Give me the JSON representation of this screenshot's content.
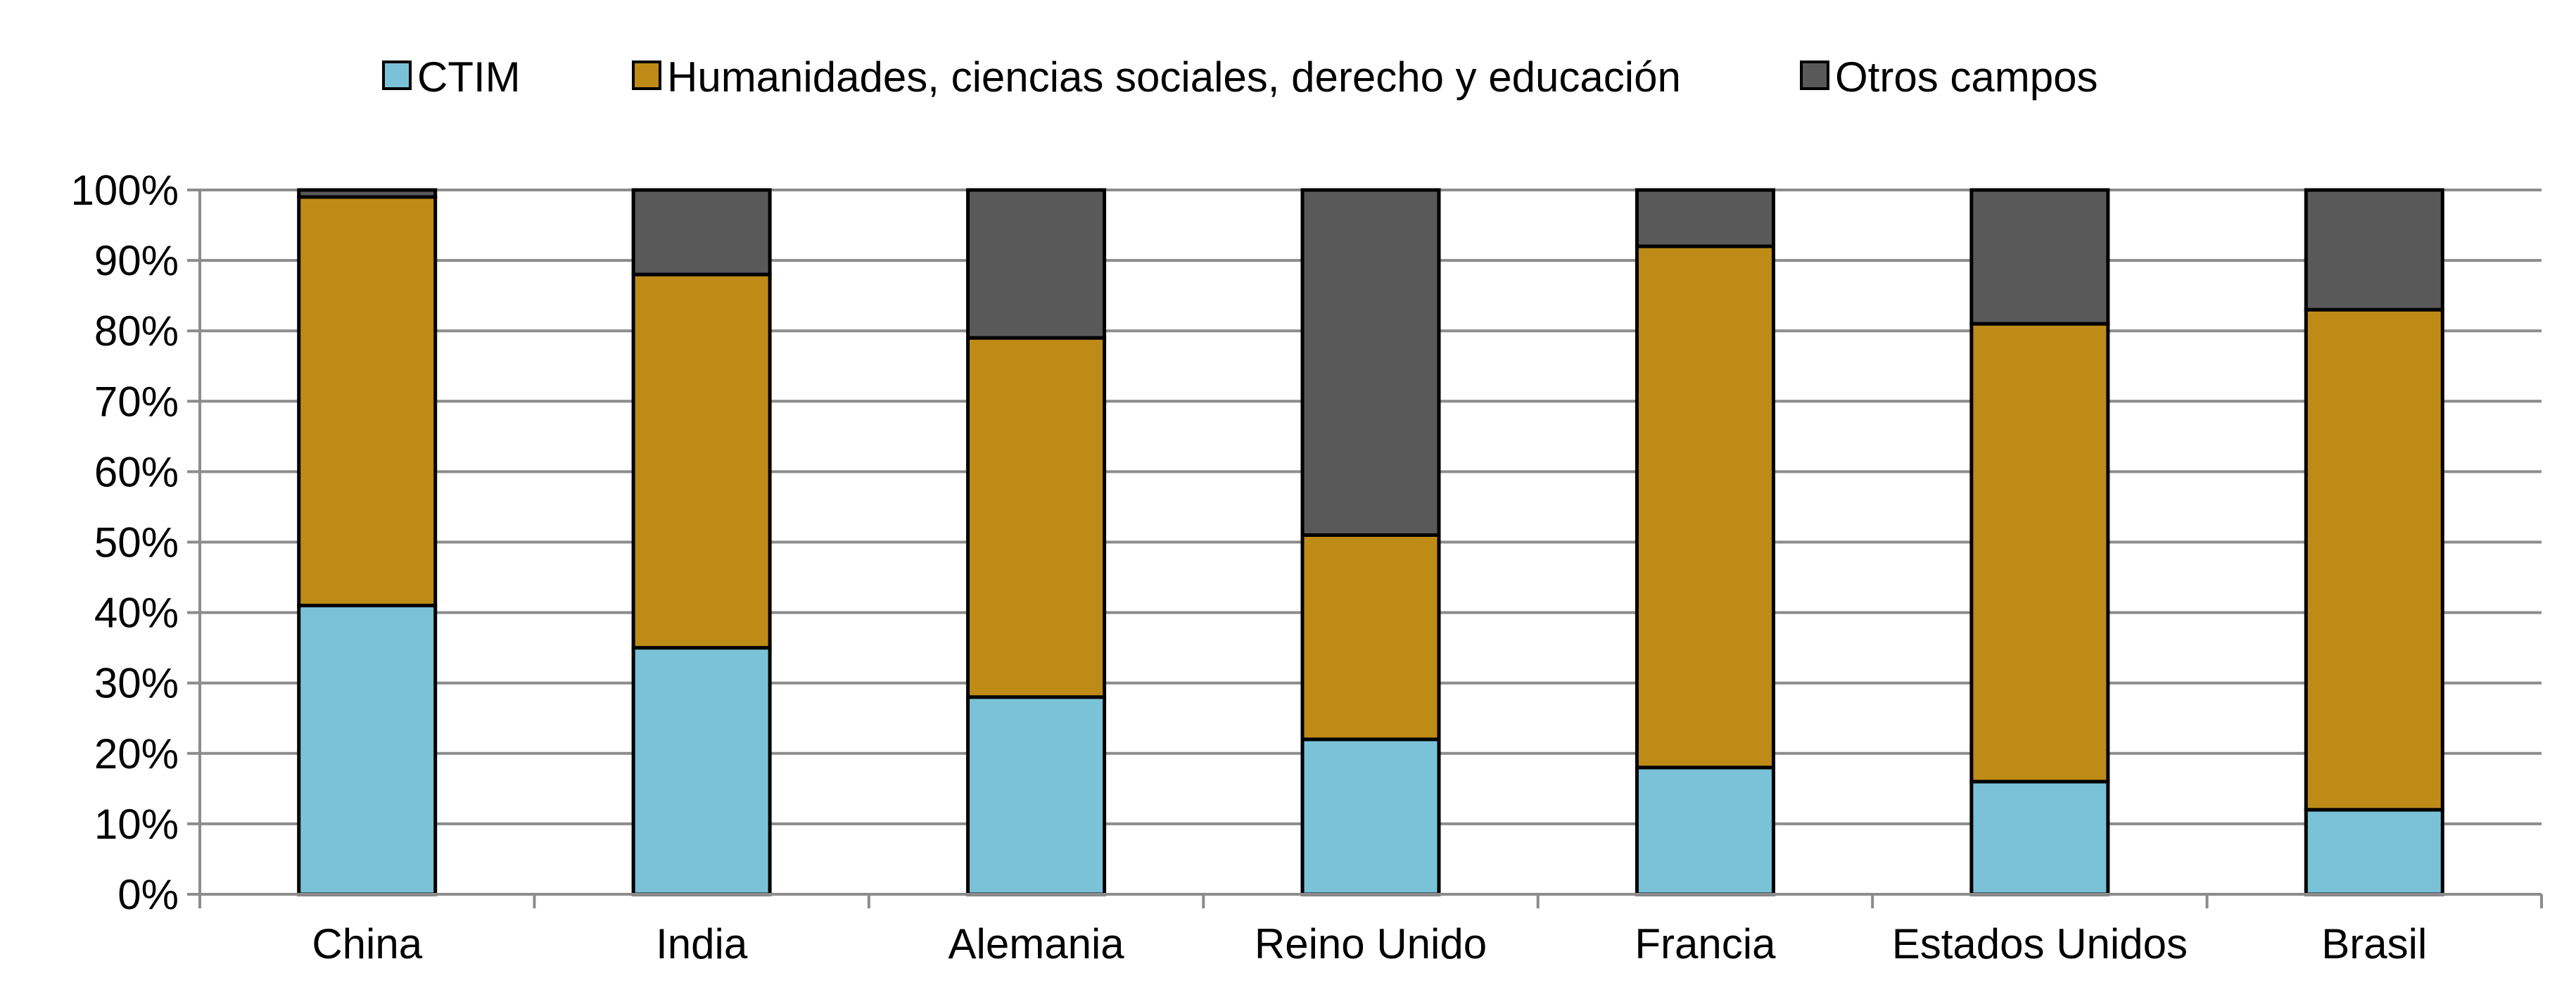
{
  "chart_data": {
    "type": "bar",
    "stacked": true,
    "title": "",
    "xlabel": "",
    "ylabel": "",
    "ylim": [
      0,
      100
    ],
    "y_ticks": [
      "0%",
      "10%",
      "20%",
      "30%",
      "40%",
      "50%",
      "60%",
      "70%",
      "80%",
      "90%",
      "100%"
    ],
    "grid": true,
    "legend_position": "top",
    "categories": [
      "China",
      "India",
      "Alemania",
      "Reino Unido",
      "Francia",
      "Estados Unidos",
      "Brasil"
    ],
    "series": [
      {
        "name": "CTIM",
        "color": "#7AC2D8",
        "values": [
          41,
          35,
          28,
          22,
          18,
          16,
          12
        ]
      },
      {
        "name": "Humanidades, ciencias sociales, derecho y educación",
        "color": "#BF8B17",
        "values": [
          58,
          53,
          51,
          29,
          74,
          65,
          71
        ]
      },
      {
        "name": "Otros campos",
        "color": "#595959",
        "values": [
          1,
          12,
          21,
          49,
          8,
          19,
          17
        ]
      }
    ]
  }
}
